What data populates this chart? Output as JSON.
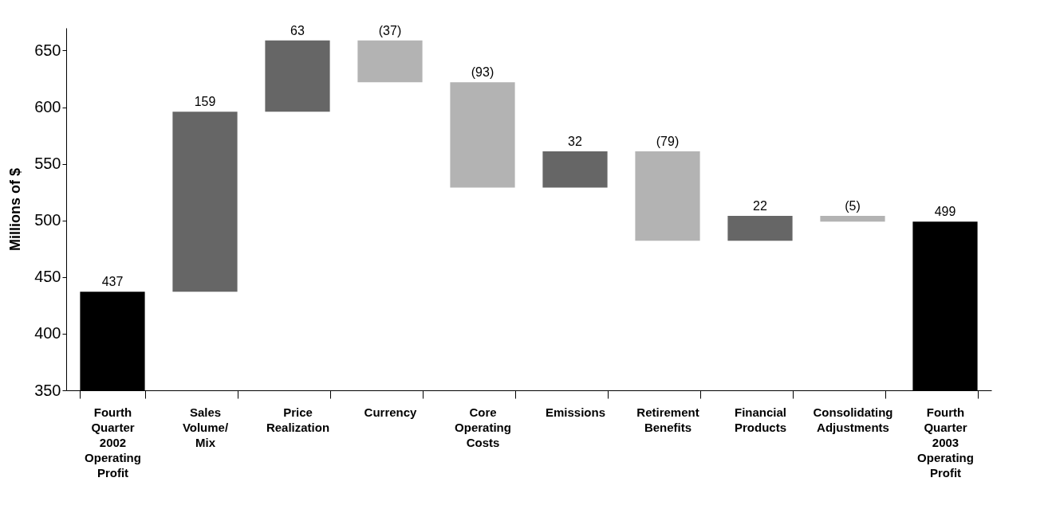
{
  "chart_data": {
    "type": "bar",
    "ylabel": "Millions of $",
    "categories": [
      "Fourth Quarter 2002 Operating Profit",
      "Sales Volume/Mix",
      "Price Realization",
      "Currency",
      "Core Operating Costs",
      "Emissions",
      "Retirement Benefits",
      "Financial Products",
      "Consolidating Adjustments",
      "Fourth Quarter 2003 Operating Profit"
    ],
    "values": [
      437,
      159,
      63,
      -37,
      -93,
      32,
      -79,
      22,
      -5,
      499
    ],
    "base": [
      null,
      437,
      596,
      659,
      622,
      529,
      561,
      482,
      504,
      null
    ],
    "colors": [
      "#000000",
      "#666666",
      "#666666",
      "#b3b3b3",
      "#b3b3b3",
      "#666666",
      "#b3b3b3",
      "#666666",
      "#b3b3b3",
      "#000000"
    ],
    "value_labels": [
      "437",
      "159",
      "63",
      "(37)",
      "(93)",
      "32",
      "(79)",
      "22",
      "(5)",
      "499"
    ],
    "ylim": [
      350,
      670
    ],
    "yticks": [
      350,
      400,
      450,
      500,
      550,
      600,
      650
    ],
    "grid": false
  }
}
